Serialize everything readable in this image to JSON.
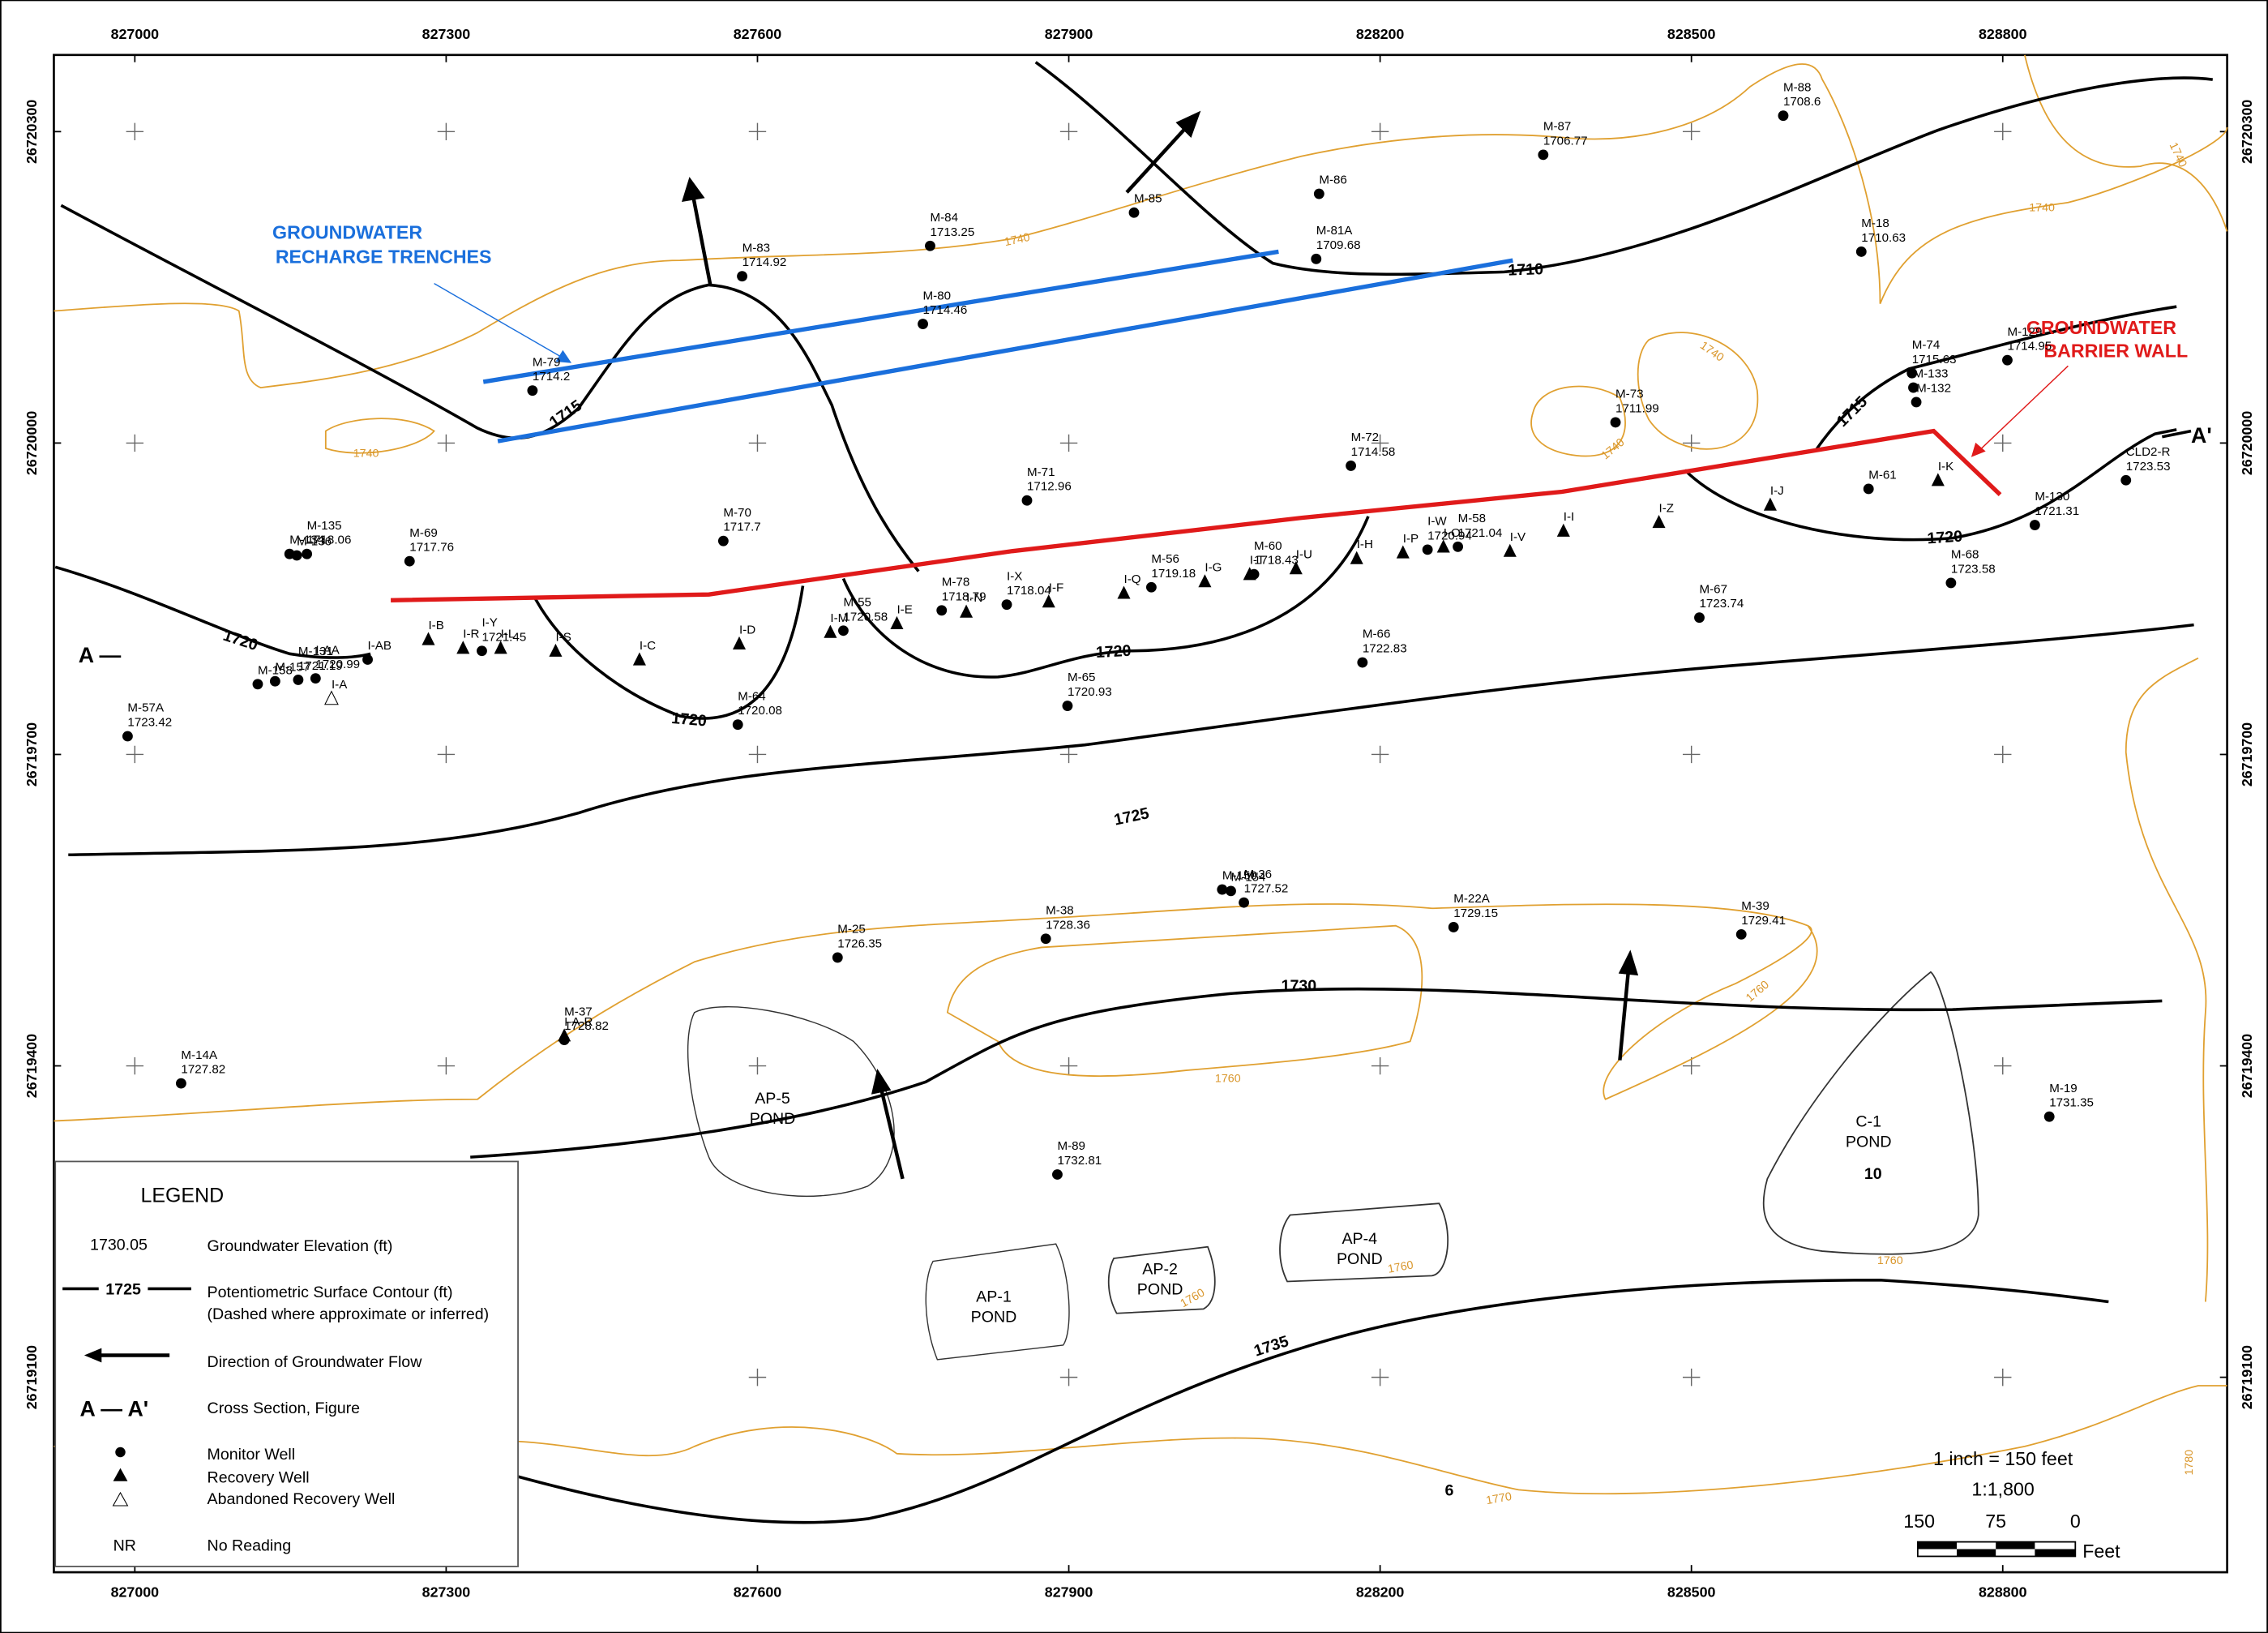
{
  "x_ticks": [
    "827000",
    "827300",
    "827600",
    "827900",
    "828200",
    "828500",
    "828800"
  ],
  "y_ticks": [
    "26720300",
    "26720000",
    "26719700",
    "26719400",
    "26719100"
  ],
  "annotations": {
    "recharge": "GROUNDWATER RECHARGE TRENCHES",
    "recharge_line1": "GROUNDWATER",
    "recharge_line2": "RECHARGE TRENCHES",
    "barrier_line1": "GROUNDWATER",
    "barrier_line2": "BARRIER WALL",
    "section_start": "A —",
    "section_end": "A'"
  },
  "ponds": [
    {
      "name": "AP-5",
      "label": "POND"
    },
    {
      "name": "AP-1",
      "label": "POND"
    },
    {
      "name": "AP-2",
      "label": "POND"
    },
    {
      "name": "AP-4",
      "label": "POND"
    },
    {
      "name": "C-1",
      "label": "POND"
    }
  ],
  "contour_labels": [
    "1710",
    "1715",
    "1715",
    "1720",
    "1720",
    "1720",
    "1720",
    "1725",
    "1730",
    "1735"
  ],
  "topo_labels": [
    "1740",
    "1740",
    "1740",
    "1740",
    "1740",
    "1740",
    "1760",
    "1760",
    "1760",
    "1760",
    "1760",
    "1770",
    "1780"
  ],
  "other_labels": [
    "6",
    "10"
  ],
  "wells": [
    {
      "name": "M-88",
      "elevation": "1708.6",
      "kind": "monitor"
    },
    {
      "name": "M-87",
      "elevation": "1706.77",
      "kind": "monitor"
    },
    {
      "name": "M-86",
      "elevation": null,
      "kind": "monitor"
    },
    {
      "name": "M-85",
      "elevation": null,
      "kind": "monitor"
    },
    {
      "name": "M-84",
      "elevation": "1713.25",
      "kind": "monitor"
    },
    {
      "name": "M-81A",
      "elevation": "1709.68",
      "kind": "monitor"
    },
    {
      "name": "M-18",
      "elevation": "1710.63",
      "kind": "monitor"
    },
    {
      "name": "M-83",
      "elevation": "1714.92",
      "kind": "monitor"
    },
    {
      "name": "M-80",
      "elevation": "1714.46",
      "kind": "monitor"
    },
    {
      "name": "M-129",
      "elevation": "1714.95",
      "kind": "monitor"
    },
    {
      "name": "M-74",
      "elevation": "1715.63",
      "kind": "monitor"
    },
    {
      "name": "M-133",
      "elevation": null,
      "kind": "monitor"
    },
    {
      "name": "M-132",
      "elevation": null,
      "kind": "monitor"
    },
    {
      "name": "M-79",
      "elevation": "1714.2",
      "kind": "monitor"
    },
    {
      "name": "M-73",
      "elevation": "1711.99",
      "kind": "monitor"
    },
    {
      "name": "M-72",
      "elevation": "1714.58",
      "kind": "monitor"
    },
    {
      "name": "M-61",
      "elevation": null,
      "kind": "monitor"
    },
    {
      "name": "I-K",
      "elevation": null,
      "kind": "recovery"
    },
    {
      "name": "CLD2-R",
      "elevation": "1723.53",
      "kind": "monitor"
    },
    {
      "name": "M-71",
      "elevation": "1712.96",
      "kind": "monitor"
    },
    {
      "name": "I-J",
      "elevation": null,
      "kind": "recovery"
    },
    {
      "name": "I-Z",
      "elevation": null,
      "kind": "recovery"
    },
    {
      "name": "M-130",
      "elevation": "1721.31",
      "kind": "monitor"
    },
    {
      "name": "M-70",
      "elevation": "1717.7",
      "kind": "monitor"
    },
    {
      "name": "I-I",
      "elevation": null,
      "kind": "recovery"
    },
    {
      "name": "M-134",
      "elevation": null,
      "kind": "monitor"
    },
    {
      "name": "M-136",
      "elevation": null,
      "kind": "monitor"
    },
    {
      "name": "M-135",
      "elevation": "1718.06",
      "kind": "monitor"
    },
    {
      "name": "M-69",
      "elevation": "1717.76",
      "kind": "monitor"
    },
    {
      "name": "I-O",
      "elevation": null,
      "kind": "recovery"
    },
    {
      "name": "I-P",
      "elevation": null,
      "kind": "recovery"
    },
    {
      "name": "I-W",
      "elevation": "1720.94",
      "kind": "monitor"
    },
    {
      "name": "M-58",
      "elevation": "1721.04",
      "kind": "monitor"
    },
    {
      "name": "I-V",
      "elevation": null,
      "kind": "recovery"
    },
    {
      "name": "I-H",
      "elevation": null,
      "kind": "recovery"
    },
    {
      "name": "I-U",
      "elevation": null,
      "kind": "recovery"
    },
    {
      "name": "I-T",
      "elevation": null,
      "kind": "recovery"
    },
    {
      "name": "M-60",
      "elevation": "1718.43",
      "kind": "monitor"
    },
    {
      "name": "I-G",
      "elevation": null,
      "kind": "recovery"
    },
    {
      "name": "M-56",
      "elevation": "1719.18",
      "kind": "monitor"
    },
    {
      "name": "I-Q",
      "elevation": null,
      "kind": "recovery"
    },
    {
      "name": "I-F",
      "elevation": null,
      "kind": "recovery"
    },
    {
      "name": "I-X",
      "elevation": "1718.04",
      "kind": "monitor"
    },
    {
      "name": "I-N",
      "elevation": null,
      "kind": "recovery"
    },
    {
      "name": "M-78",
      "elevation": "1718.79",
      "kind": "monitor"
    },
    {
      "name": "I-E",
      "elevation": null,
      "kind": "recovery"
    },
    {
      "name": "I-M",
      "elevation": null,
      "kind": "recovery"
    },
    {
      "name": "M-55",
      "elevation": "1720.58",
      "kind": "monitor"
    },
    {
      "name": "I-D",
      "elevation": null,
      "kind": "recovery"
    },
    {
      "name": "M-68",
      "elevation": "1723.58",
      "kind": "monitor"
    },
    {
      "name": "M-67",
      "elevation": "1723.74",
      "kind": "monitor"
    },
    {
      "name": "M-66",
      "elevation": "1722.83",
      "kind": "monitor"
    },
    {
      "name": "M-65",
      "elevation": "1720.93",
      "kind": "monitor"
    },
    {
      "name": "M-64",
      "elevation": "1720.08",
      "kind": "monitor"
    },
    {
      "name": "I-C",
      "elevation": null,
      "kind": "recovery"
    },
    {
      "name": "I-S",
      "elevation": null,
      "kind": "recovery"
    },
    {
      "name": "I-L",
      "elevation": null,
      "kind": "recovery"
    },
    {
      "name": "I-R",
      "elevation": null,
      "kind": "recovery"
    },
    {
      "name": "I-Y",
      "elevation": "1721.45",
      "kind": "monitor"
    },
    {
      "name": "I-B",
      "elevation": null,
      "kind": "recovery"
    },
    {
      "name": "I-AB",
      "elevation": null,
      "kind": "monitor"
    },
    {
      "name": "I-AA",
      "elevation": "1720.99",
      "kind": "monitor"
    },
    {
      "name": "M-157",
      "elevation": null,
      "kind": "monitor"
    },
    {
      "name": "M-158",
      "elevation": null,
      "kind": "monitor"
    },
    {
      "name": "M-131",
      "elevation": "1721.19",
      "kind": "monitor"
    },
    {
      "name": "I-A",
      "elevation": null,
      "kind": "abandoned"
    },
    {
      "name": "M-57A",
      "elevation": "1723.42",
      "kind": "monitor"
    },
    {
      "name": "M-150",
      "elevation": null,
      "kind": "monitor"
    },
    {
      "name": "M-154",
      "elevation": null,
      "kind": "monitor"
    },
    {
      "name": "M-36",
      "elevation": "1727.52",
      "kind": "monitor"
    },
    {
      "name": "M-22A",
      "elevation": "1729.15",
      "kind": "monitor"
    },
    {
      "name": "M-38",
      "elevation": "1728.36",
      "kind": "monitor"
    },
    {
      "name": "M-39",
      "elevation": "1729.41",
      "kind": "monitor"
    },
    {
      "name": "M-25",
      "elevation": "1726.35",
      "kind": "monitor"
    },
    {
      "name": "M-37",
      "elevation": "1728.82",
      "kind": "monitor"
    },
    {
      "name": "I-A-R",
      "elevation": null,
      "kind": "recovery"
    },
    {
      "name": "M-14A",
      "elevation": "1727.82",
      "kind": "monitor"
    },
    {
      "name": "M-19",
      "elevation": "1731.35",
      "kind": "monitor"
    },
    {
      "name": "M-89",
      "elevation": "1732.81",
      "kind": "monitor"
    }
  ],
  "legend": {
    "title": "LEGEND",
    "elev_sample": "1730.05",
    "elev_text": "Groundwater Elevation (ft)",
    "contour_sample": "1725",
    "contour_text": "Potentiometric Surface Contour (ft)",
    "contour_note": "(Dashed where approximate or inferred)",
    "flow_text": "Direction of Groundwater Flow",
    "section_sample": "A — A'",
    "section_text": "Cross Section, Figure",
    "monitor_text": "Monitor Well",
    "recovery_text": "Recovery Well",
    "abandoned_text": "Abandoned Recovery Well",
    "nr_sample": "NR",
    "nr_text": "No Reading"
  },
  "scale": {
    "ratio_text": "1 inch = 150 feet",
    "ratio": "1:1,800",
    "label_150": "150",
    "label_75": "75",
    "label_0": "0",
    "unit": "Feet"
  }
}
